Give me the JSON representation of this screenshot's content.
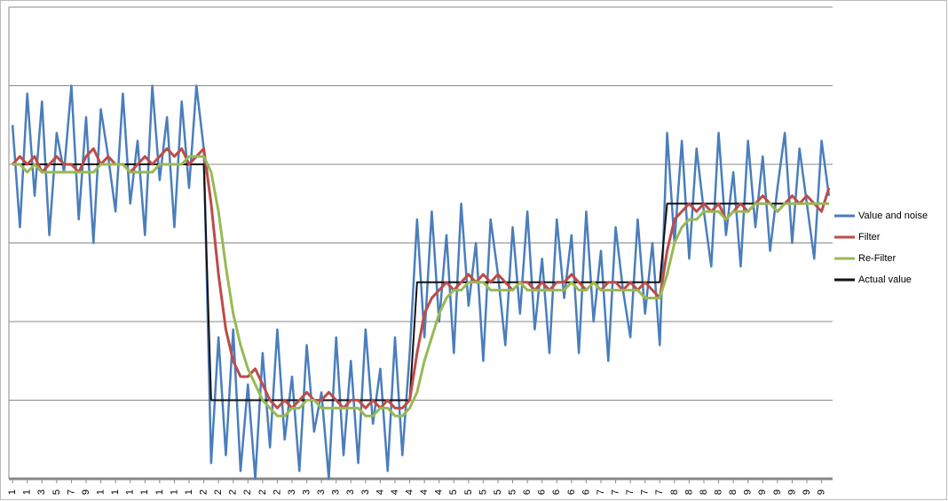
{
  "chart_data": {
    "type": "line",
    "categories": [
      "1",
      null,
      "1",
      null,
      "3",
      null,
      "5",
      null,
      "7",
      null,
      "9",
      null,
      "1",
      null,
      "1",
      null,
      "1",
      null,
      "1",
      null,
      "1",
      null,
      "1",
      null,
      "1",
      null,
      "2",
      null,
      "2",
      null,
      "2",
      null,
      "2",
      null,
      "2",
      null,
      "2",
      null,
      "3",
      null,
      "3",
      null,
      "3",
      null,
      "3",
      null,
      "3",
      null,
      "3",
      null,
      "4",
      null,
      "4",
      null,
      "4",
      null,
      "4",
      null,
      "4",
      null,
      "5",
      null,
      "5",
      null,
      "5",
      null,
      "5",
      null,
      "5",
      null,
      "6",
      null,
      "6",
      null,
      "6",
      null,
      "6",
      null,
      "6",
      null,
      "7",
      null,
      "7",
      null,
      "7",
      null,
      "7",
      null,
      "7",
      null,
      "8",
      null,
      "8",
      null,
      "8",
      null,
      "8",
      null,
      "8",
      null,
      "9",
      null,
      "9",
      null,
      "9",
      null,
      "9",
      null,
      "9",
      null,
      "9",
      null
    ],
    "series": [
      {
        "name": "Value and noise",
        "color": "#4a7ebb",
        "values": [
          4.5,
          3.2,
          4.9,
          3.6,
          4.8,
          3.1,
          4.4,
          3.9,
          5.0,
          3.3,
          4.6,
          3.0,
          4.7,
          4.1,
          3.4,
          4.9,
          3.5,
          4.3,
          3.1,
          5.0,
          3.8,
          4.6,
          3.2,
          4.8,
          3.7,
          5.0,
          4.2,
          0.2,
          1.8,
          0.3,
          1.9,
          0.1,
          1.2,
          0.0,
          1.6,
          0.4,
          1.9,
          0.5,
          1.3,
          0.1,
          1.7,
          0.6,
          1.1,
          0.0,
          1.8,
          0.3,
          1.5,
          0.2,
          1.9,
          0.7,
          1.4,
          0.1,
          1.8,
          0.3,
          1.6,
          3.3,
          1.8,
          3.4,
          2.0,
          3.1,
          1.6,
          3.5,
          2.2,
          3.0,
          1.5,
          3.3,
          2.6,
          1.7,
          3.2,
          2.1,
          3.4,
          1.9,
          2.8,
          1.6,
          3.3,
          2.3,
          3.1,
          1.6,
          3.4,
          2.0,
          2.9,
          1.5,
          3.2,
          2.4,
          1.8,
          3.3,
          2.1,
          3.0,
          1.7,
          4.4,
          3.0,
          4.3,
          2.8,
          4.2,
          3.4,
          2.7,
          4.4,
          3.1,
          3.9,
          2.7,
          4.3,
          3.2,
          4.1,
          2.9,
          3.7,
          4.4,
          3.0,
          4.2,
          3.5,
          2.8,
          4.3,
          3.6
        ]
      },
      {
        "name": "Filter",
        "color": "#be4b48",
        "values": [
          4.0,
          4.1,
          4.0,
          4.1,
          3.9,
          4.0,
          4.1,
          4.0,
          4.0,
          3.9,
          4.1,
          4.2,
          4.0,
          4.1,
          4.0,
          4.0,
          3.9,
          4.0,
          4.1,
          4.0,
          4.1,
          4.2,
          4.1,
          4.2,
          4.0,
          4.1,
          4.2,
          3.5,
          2.6,
          1.9,
          1.5,
          1.3,
          1.3,
          1.4,
          1.2,
          1.0,
          0.9,
          1.0,
          0.9,
          1.0,
          1.1,
          1.0,
          1.0,
          1.1,
          1.0,
          0.9,
          1.0,
          1.0,
          0.9,
          1.0,
          0.9,
          1.0,
          0.9,
          0.9,
          1.0,
          1.6,
          2.1,
          2.3,
          2.4,
          2.5,
          2.4,
          2.5,
          2.6,
          2.5,
          2.6,
          2.5,
          2.6,
          2.5,
          2.4,
          2.5,
          2.5,
          2.4,
          2.5,
          2.4,
          2.5,
          2.5,
          2.6,
          2.5,
          2.4,
          2.5,
          2.4,
          2.5,
          2.5,
          2.4,
          2.5,
          2.4,
          2.5,
          2.4,
          2.3,
          2.9,
          3.3,
          3.4,
          3.5,
          3.4,
          3.5,
          3.4,
          3.5,
          3.3,
          3.4,
          3.5,
          3.4,
          3.5,
          3.6,
          3.5,
          3.4,
          3.5,
          3.6,
          3.5,
          3.6,
          3.5,
          3.4,
          3.7
        ]
      },
      {
        "name": "Re-Filter",
        "color": "#98b954",
        "values": [
          4.0,
          4.0,
          3.9,
          4.0,
          3.9,
          3.9,
          3.9,
          3.9,
          3.9,
          3.9,
          3.9,
          3.9,
          4.0,
          4.0,
          4.0,
          4.0,
          3.9,
          3.9,
          3.9,
          3.9,
          4.0,
          4.0,
          4.0,
          4.0,
          4.1,
          4.1,
          4.1,
          3.9,
          3.4,
          2.7,
          2.1,
          1.7,
          1.4,
          1.2,
          1.0,
          0.9,
          0.8,
          0.8,
          0.9,
          0.9,
          1.0,
          1.0,
          0.9,
          0.9,
          0.9,
          0.9,
          0.9,
          0.9,
          0.8,
          0.8,
          0.9,
          0.9,
          0.8,
          0.8,
          0.9,
          1.1,
          1.5,
          1.8,
          2.1,
          2.3,
          2.4,
          2.4,
          2.5,
          2.5,
          2.5,
          2.4,
          2.4,
          2.4,
          2.4,
          2.5,
          2.4,
          2.4,
          2.4,
          2.4,
          2.4,
          2.4,
          2.5,
          2.4,
          2.4,
          2.5,
          2.4,
          2.4,
          2.4,
          2.4,
          2.4,
          2.4,
          2.3,
          2.3,
          2.3,
          2.6,
          3.0,
          3.2,
          3.3,
          3.3,
          3.4,
          3.4,
          3.4,
          3.3,
          3.4,
          3.4,
          3.4,
          3.5,
          3.5,
          3.5,
          3.4,
          3.5,
          3.5,
          3.5,
          3.5,
          3.5,
          3.5,
          3.5
        ]
      },
      {
        "name": "Actual value",
        "color": "#111111",
        "values": [
          4,
          4,
          4,
          4,
          4,
          4,
          4,
          4,
          4,
          4,
          4,
          4,
          4,
          4,
          4,
          4,
          4,
          4,
          4,
          4,
          4,
          4,
          4,
          4,
          4,
          4,
          4,
          1,
          1,
          1,
          1,
          1,
          1,
          1,
          1,
          1,
          1,
          1,
          1,
          1,
          1,
          1,
          1,
          1,
          1,
          1,
          1,
          1,
          1,
          1,
          1,
          1,
          1,
          1,
          1,
          2.5,
          2.5,
          2.5,
          2.5,
          2.5,
          2.5,
          2.5,
          2.5,
          2.5,
          2.5,
          2.5,
          2.5,
          2.5,
          2.5,
          2.5,
          2.5,
          2.5,
          2.5,
          2.5,
          2.5,
          2.5,
          2.5,
          2.5,
          2.5,
          2.5,
          2.5,
          2.5,
          2.5,
          2.5,
          2.5,
          2.5,
          2.5,
          2.5,
          2.5,
          3.5,
          3.5,
          3.5,
          3.5,
          3.5,
          3.5,
          3.5,
          3.5,
          3.5,
          3.5,
          3.5,
          3.5,
          3.5,
          3.5,
          3.5,
          3.5,
          3.5,
          3.5,
          3.5,
          3.5,
          3.5,
          3.5,
          3.5
        ]
      }
    ],
    "draw_order": [
      0,
      3,
      1,
      2
    ],
    "ylim": [
      0,
      6
    ],
    "yticks": [
      0,
      1,
      2,
      3,
      4,
      5,
      6
    ],
    "grid": true,
    "legend": "right"
  }
}
